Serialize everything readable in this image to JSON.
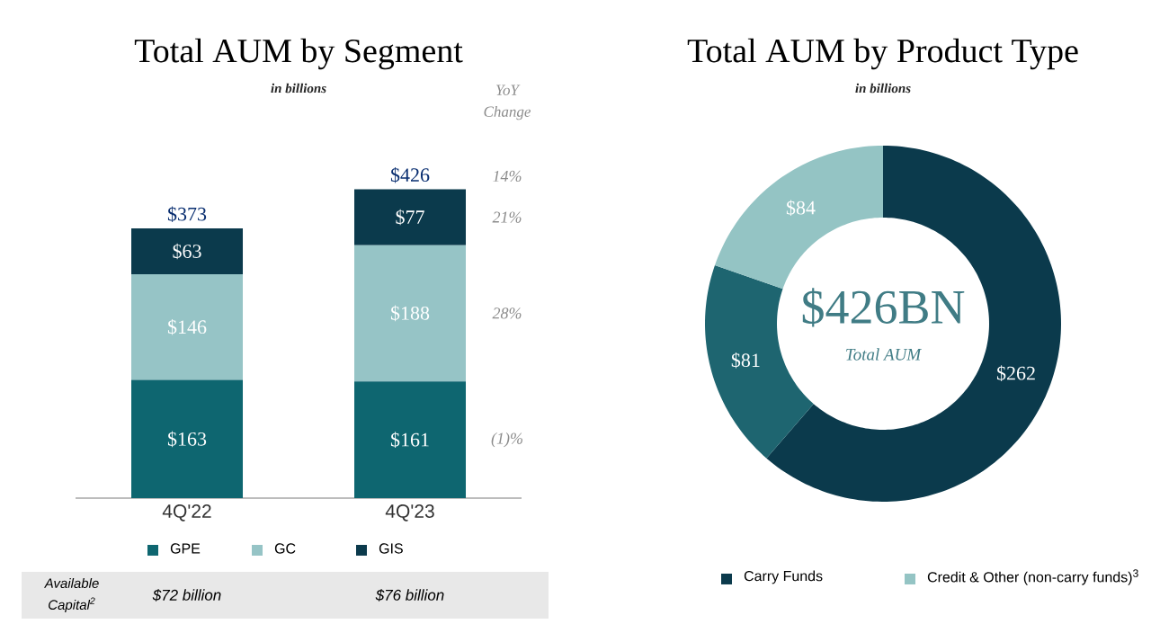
{
  "chart_data": [
    {
      "type": "bar",
      "title": "Total AUM by Segment",
      "subtitle": "in billions",
      "categories": [
        "4Q'22",
        "4Q'23"
      ],
      "stacked": true,
      "series": [
        {
          "name": "GPE",
          "color": "#0e6670",
          "values": [
            163,
            161
          ],
          "value_labels": [
            "$163",
            "$161"
          ]
        },
        {
          "name": "GC",
          "color": "#96c4c6",
          "values": [
            146,
            188
          ],
          "value_labels": [
            "$146",
            "$188"
          ]
        },
        {
          "name": "GIS",
          "color": "#0b3a4c",
          "values": [
            63,
            77
          ],
          "value_labels": [
            "$63",
            "$77"
          ]
        }
      ],
      "totals": [
        "$373",
        "$426"
      ],
      "tick_labels": "x",
      "legend": "bottom",
      "annotations": [
        "YoY Change",
        "14%",
        "21%",
        "28%",
        "(1)%",
        "Available Capital$^{2}$",
        "$72 billion",
        "$76 billion"
      ]
    },
    {
      "type": "donut",
      "title": "Total AUM by Product Type",
      "subtitle": "in billions",
      "categories": [
        "Carry Funds",
        null,
        "Credit & Other (non-carry funds)$^{3}$"
      ],
      "values": [
        262,
        81,
        84
      ],
      "colors": [
        "#0b3a4c",
        "#1e6570",
        "#94c4c4"
      ],
      "value_labels": [
        "$262",
        "$81",
        "$84"
      ],
      "legend": "bottom",
      "annotations": [
        "$426BN",
        "Total AUM"
      ]
    }
  ]
}
